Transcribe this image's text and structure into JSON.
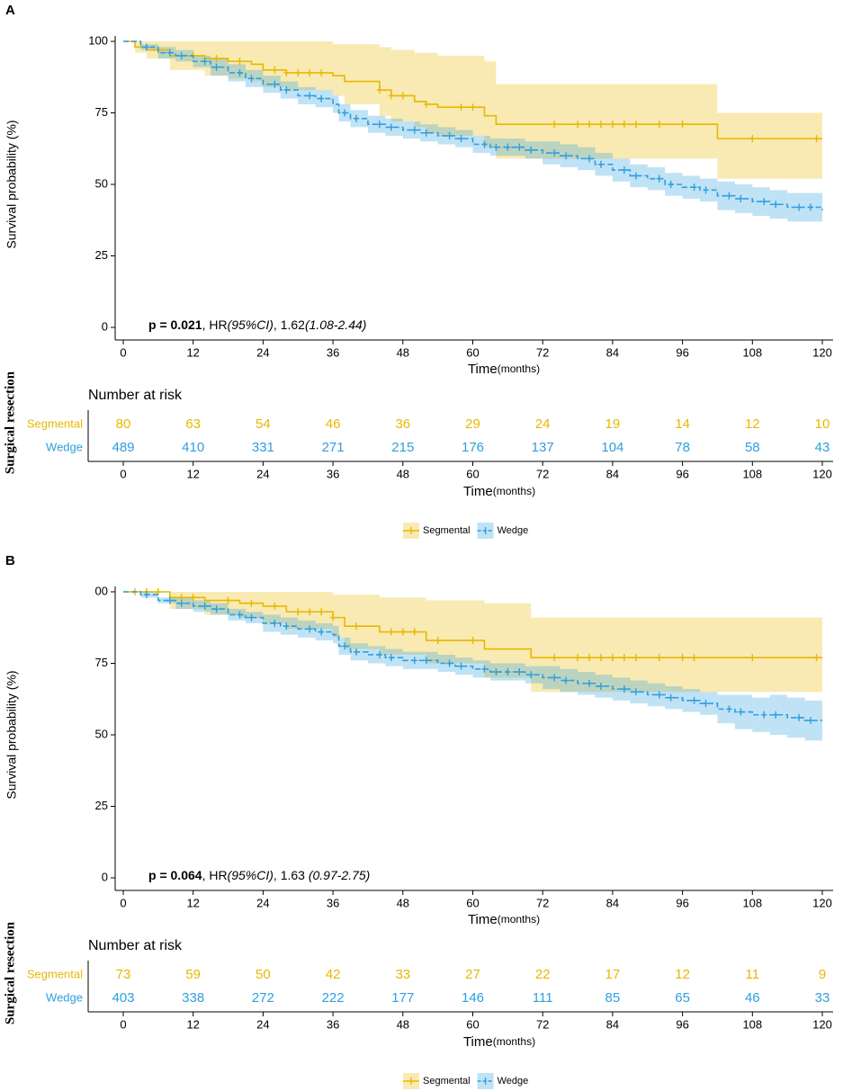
{
  "chart_data": [
    {
      "type": "step",
      "tag": "A",
      "ylabel": "Survival probability (%)",
      "xlabel": "Time",
      "xlabel_unit": "(months)",
      "annotation": [
        {
          "text": "p = ",
          "style": "bold"
        },
        {
          "text": "0.021",
          "style": "bold"
        },
        {
          "text": ", HR",
          "style": "normal"
        },
        {
          "text": "(95%CI)",
          "style": "italic"
        },
        {
          "text": ", 1.62",
          "style": "normal"
        },
        {
          "text": "(1.08-2.44)",
          "style": "italic"
        }
      ],
      "xlim": [
        0,
        120
      ],
      "xticks": [
        0,
        12,
        24,
        36,
        48,
        60,
        72,
        84,
        96,
        108,
        120
      ],
      "ylim": [
        0,
        100
      ],
      "yticks": [
        0,
        25,
        50,
        75,
        100
      ],
      "legend": "bottom",
      "series": [
        {
          "name": "Segmental",
          "color": "#E7B800",
          "x": [
            0,
            2,
            4,
            8,
            14,
            18,
            22,
            24,
            28,
            36,
            38,
            44,
            46,
            50,
            52,
            54,
            62,
            64,
            102,
            120
          ],
          "values": [
            100,
            98,
            97,
            95,
            94,
            93,
            92,
            90,
            89,
            88,
            86,
            83,
            81,
            79,
            78,
            77,
            74,
            71,
            66,
            66
          ],
          "upper": [
            100,
            100,
            100,
            100,
            100,
            100,
            100,
            100,
            100,
            99,
            99,
            98,
            97,
            96,
            96,
            95,
            93,
            85,
            75,
            75
          ],
          "lower": [
            100,
            96,
            94,
            90,
            88,
            87,
            86,
            84,
            83,
            81,
            78,
            74,
            72,
            70,
            68,
            67,
            63,
            59,
            52,
            52
          ],
          "censored": [
            6,
            12,
            16,
            20,
            26,
            28,
            30,
            32,
            34,
            44,
            46,
            48,
            52,
            58,
            60,
            74,
            78,
            80,
            82,
            84,
            86,
            88,
            92,
            96,
            108,
            119
          ]
        },
        {
          "name": "Wedge",
          "color": "#2E9FDF",
          "x": [
            0,
            3,
            6,
            9,
            12,
            15,
            18,
            21,
            24,
            27,
            30,
            33,
            36,
            37,
            39,
            42,
            45,
            48,
            51,
            54,
            57,
            60,
            63,
            66,
            69,
            72,
            75,
            78,
            81,
            84,
            87,
            90,
            93,
            96,
            99,
            102,
            105,
            108,
            111,
            114,
            117,
            120
          ],
          "values": [
            100,
            98,
            96,
            95,
            93,
            91,
            89,
            87,
            85,
            83,
            81,
            80,
            78,
            75,
            73,
            71,
            70,
            69,
            68,
            67,
            66,
            64,
            63,
            63,
            62,
            61,
            60,
            59,
            57,
            55,
            53,
            52,
            50,
            49,
            48,
            46,
            45,
            44,
            43,
            42,
            42,
            41
          ],
          "upper": [
            100,
            99,
            98,
            97,
            95,
            94,
            92,
            90,
            88,
            86,
            84,
            83,
            81,
            78,
            76,
            74,
            73,
            72,
            71,
            70,
            69,
            67,
            66,
            66,
            65,
            65,
            64,
            63,
            61,
            59,
            57,
            56,
            54,
            53,
            52,
            51,
            50,
            49,
            48,
            47,
            47,
            46
          ],
          "lower": [
            100,
            97,
            94,
            93,
            91,
            88,
            86,
            84,
            82,
            80,
            78,
            77,
            75,
            72,
            70,
            68,
            67,
            66,
            65,
            64,
            63,
            61,
            60,
            60,
            59,
            57,
            56,
            55,
            53,
            51,
            49,
            48,
            46,
            45,
            44,
            41,
            40,
            39,
            38,
            37,
            37,
            36
          ],
          "censored": [
            4,
            8,
            10,
            14,
            16,
            20,
            22,
            26,
            28,
            32,
            34,
            38,
            40,
            44,
            46,
            50,
            52,
            56,
            58,
            62,
            64,
            66,
            68,
            70,
            74,
            76,
            80,
            82,
            86,
            88,
            92,
            94,
            98,
            100,
            104,
            106,
            110,
            112,
            116,
            118
          ]
        }
      ],
      "risk_table": {
        "group_label": "Surgical resection",
        "title": "Number at risk",
        "rows": [
          [
            80,
            63,
            54,
            46,
            36,
            29,
            24,
            19,
            14,
            12,
            10
          ],
          [
            489,
            410,
            331,
            271,
            215,
            176,
            137,
            104,
            78,
            58,
            43
          ]
        ]
      }
    },
    {
      "type": "step",
      "tag": "B",
      "ylabel": "Survival probability (%)",
      "xlabel": "Time",
      "xlabel_unit": "(months)",
      "annotation": [
        {
          "text": "p = ",
          "style": "bold"
        },
        {
          "text": "0.064",
          "style": "bold"
        },
        {
          "text": ", HR",
          "style": "normal"
        },
        {
          "text": "(95%CI)",
          "style": "italic"
        },
        {
          "text": ", 1.63 ",
          "style": "normal"
        },
        {
          "text": "(0.97-2.75)",
          "style": "italic"
        }
      ],
      "xlim": [
        0,
        120
      ],
      "xticks": [
        0,
        12,
        24,
        36,
        48,
        60,
        72,
        84,
        96,
        108,
        120
      ],
      "ylim": [
        0,
        100
      ],
      "yticks": [
        0,
        25,
        50,
        75,
        {
          "value": 100,
          "label": "00"
        }
      ],
      "legend": "bottom",
      "series": [
        {
          "name": "Segmental",
          "color": "#E7B800",
          "x": [
            0,
            8,
            14,
            20,
            24,
            28,
            36,
            38,
            44,
            52,
            62,
            70,
            120
          ],
          "values": [
            100,
            98,
            97,
            96,
            95,
            93,
            91,
            88,
            86,
            83,
            80,
            77,
            77
          ],
          "upper": [
            100,
            100,
            100,
            100,
            100,
            100,
            99,
            99,
            98,
            97,
            96,
            91,
            91
          ],
          "lower": [
            100,
            94,
            92,
            91,
            89,
            87,
            84,
            80,
            78,
            75,
            70,
            65,
            65
          ],
          "censored": [
            2,
            4,
            6,
            10,
            12,
            18,
            22,
            26,
            30,
            32,
            34,
            36,
            40,
            46,
            48,
            50,
            54,
            60,
            74,
            78,
            80,
            82,
            84,
            86,
            88,
            92,
            96,
            98,
            108,
            119
          ]
        },
        {
          "name": "Wedge",
          "color": "#2E9FDF",
          "x": [
            0,
            3,
            6,
            9,
            12,
            15,
            18,
            21,
            24,
            27,
            30,
            33,
            36,
            37,
            39,
            42,
            45,
            48,
            51,
            54,
            57,
            60,
            63,
            66,
            69,
            72,
            75,
            78,
            81,
            84,
            87,
            90,
            93,
            96,
            99,
            102,
            105,
            108,
            111,
            114,
            117,
            120
          ],
          "values": [
            100,
            99,
            97,
            96,
            95,
            94,
            92,
            91,
            89,
            88,
            87,
            86,
            85,
            81,
            79,
            78,
            77,
            76,
            76,
            75,
            74,
            73,
            72,
            72,
            71,
            70,
            69,
            68,
            67,
            66,
            65,
            64,
            63,
            62,
            61,
            59,
            58,
            57,
            57,
            56,
            55,
            55
          ],
          "upper": [
            100,
            100,
            98,
            98,
            97,
            96,
            94,
            93,
            92,
            91,
            90,
            89,
            88,
            84,
            82,
            81,
            80,
            79,
            79,
            78,
            77,
            76,
            75,
            75,
            74,
            74,
            73,
            72,
            71,
            70,
            69,
            68,
            67,
            66,
            65,
            64,
            64,
            63,
            64,
            63,
            62,
            62
          ],
          "lower": [
            100,
            98,
            96,
            94,
            93,
            92,
            90,
            89,
            86,
            85,
            84,
            83,
            82,
            78,
            76,
            75,
            74,
            73,
            73,
            72,
            71,
            70,
            69,
            69,
            68,
            66,
            65,
            64,
            63,
            62,
            61,
            60,
            59,
            58,
            57,
            54,
            52,
            51,
            50,
            49,
            48,
            48
          ],
          "censored": [
            4,
            8,
            10,
            14,
            16,
            20,
            22,
            26,
            28,
            32,
            34,
            38,
            40,
            44,
            46,
            50,
            52,
            56,
            58,
            62,
            64,
            66,
            68,
            70,
            74,
            76,
            80,
            82,
            86,
            88,
            92,
            94,
            98,
            100,
            104,
            106,
            110,
            112,
            116,
            118
          ]
        }
      ],
      "risk_table": {
        "group_label": "Surgical resection",
        "title": "Number at risk",
        "rows": [
          [
            73,
            59,
            50,
            42,
            33,
            27,
            22,
            17,
            12,
            11,
            9
          ],
          [
            403,
            338,
            272,
            222,
            177,
            146,
            111,
            85,
            65,
            46,
            33
          ]
        ]
      }
    }
  ]
}
